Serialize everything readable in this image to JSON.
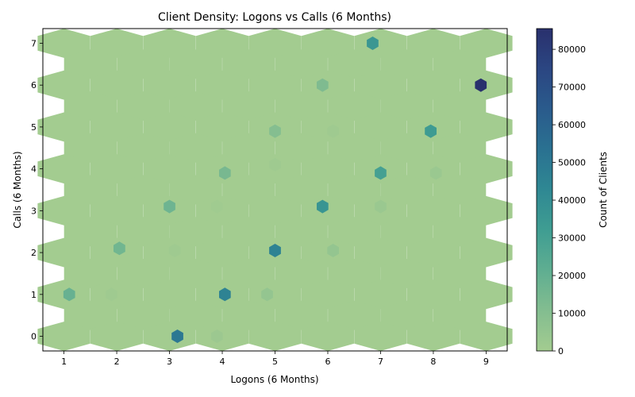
{
  "chart_data": {
    "type": "heatmap",
    "subtype": "hexbin",
    "title": "Client Density: Logons vs Calls (6 Months)",
    "xlabel": "Logons (6 Months)",
    "ylabel": "Calls (6 Months)",
    "xlim": [
      0.6,
      9.4
    ],
    "ylim": [
      -0.35,
      7.35
    ],
    "x_ticks": [
      1,
      2,
      3,
      4,
      5,
      6,
      7,
      8,
      9
    ],
    "y_ticks": [
      0,
      1,
      2,
      3,
      4,
      5,
      6,
      7
    ],
    "grid": false,
    "colorbar": {
      "label": "Count of Clients",
      "min": 0,
      "max": 85500,
      "ticks": [
        0,
        10000,
        20000,
        30000,
        40000,
        50000,
        60000,
        70000,
        80000
      ],
      "colormap": [
        "#a3cc90",
        "#83bd90",
        "#5fae91",
        "#3f9d92",
        "#2f8893",
        "#2a7191",
        "#2a5b8c",
        "#2b4682",
        "#29306d"
      ]
    },
    "points": [
      {
        "x": 6.85,
        "y": 7.0,
        "count": 35000
      },
      {
        "x": 8.9,
        "y": 6.0,
        "count": 85500
      },
      {
        "x": 5.9,
        "y": 6.0,
        "count": 12000
      },
      {
        "x": 5.0,
        "y": 4.9,
        "count": 10000
      },
      {
        "x": 7.95,
        "y": 4.9,
        "count": 33000
      },
      {
        "x": 6.1,
        "y": 4.9,
        "count": 1500
      },
      {
        "x": 4.05,
        "y": 3.9,
        "count": 14000
      },
      {
        "x": 7.0,
        "y": 3.9,
        "count": 30000
      },
      {
        "x": 8.05,
        "y": 3.9,
        "count": 3000
      },
      {
        "x": 5.0,
        "y": 4.1,
        "count": 1500
      },
      {
        "x": 3.0,
        "y": 3.1,
        "count": 17000
      },
      {
        "x": 5.9,
        "y": 3.1,
        "count": 36000
      },
      {
        "x": 7.0,
        "y": 3.1,
        "count": 3000
      },
      {
        "x": 3.9,
        "y": 3.1,
        "count": 1000
      },
      {
        "x": 2.05,
        "y": 2.1,
        "count": 16000
      },
      {
        "x": 5.0,
        "y": 2.05,
        "count": 45000
      },
      {
        "x": 6.1,
        "y": 2.05,
        "count": 5000
      },
      {
        "x": 3.1,
        "y": 2.05,
        "count": 1500
      },
      {
        "x": 1.1,
        "y": 1.0,
        "count": 19000
      },
      {
        "x": 4.05,
        "y": 1.0,
        "count": 45000
      },
      {
        "x": 4.85,
        "y": 1.0,
        "count": 5000
      },
      {
        "x": 1.9,
        "y": 1.0,
        "count": 1500
      },
      {
        "x": 3.15,
        "y": 0.0,
        "count": 50000
      },
      {
        "x": 3.9,
        "y": 0.0,
        "count": 2500
      }
    ]
  }
}
